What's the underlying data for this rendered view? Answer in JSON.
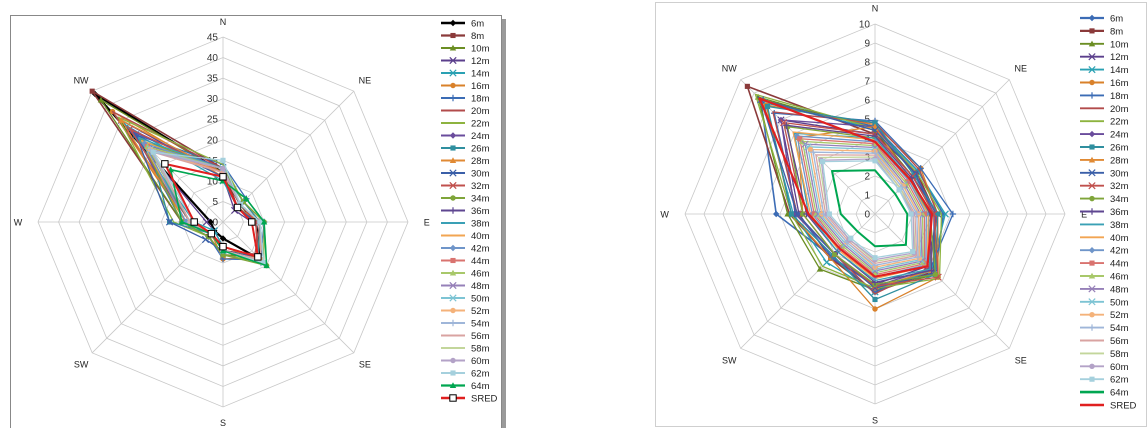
{
  "chart_data": [
    {
      "type": "radar",
      "categories": [
        "N",
        "NE",
        "E",
        "SE",
        "S",
        "SW",
        "W",
        "NW"
      ],
      "rmax": 45,
      "ticks": [
        0,
        5,
        10,
        15,
        20,
        25,
        30,
        35,
        40,
        45
      ],
      "series": [
        {
          "name": "6m",
          "color": "#000000",
          "marker": "diamond",
          "width": 2.2,
          "values": [
            12,
            6,
            8,
            13,
            4,
            3,
            3,
            44
          ]
        },
        {
          "name": "8m",
          "color": "#8b3a3a",
          "marker": "square",
          "width": 1.6,
          "values": [
            13,
            5,
            8,
            12,
            8,
            5,
            10,
            45
          ]
        },
        {
          "name": "10m",
          "color": "#6b8e23",
          "marker": "triangle",
          "width": 1.3,
          "values": [
            12,
            6,
            8,
            12,
            8,
            5,
            10,
            42
          ]
        },
        {
          "name": "12m",
          "color": "#5b3f8c",
          "marker": "x",
          "width": 1.3,
          "values": [
            11,
            4,
            7,
            12,
            6,
            3,
            4,
            35
          ]
        },
        {
          "name": "14m",
          "color": "#2aa1b3",
          "marker": "x",
          "width": 1.3,
          "values": [
            10,
            5,
            9,
            13,
            6,
            3,
            7,
            33
          ]
        },
        {
          "name": "16m",
          "color": "#d9812a",
          "marker": "circle",
          "width": 1.3,
          "values": [
            11,
            5,
            9,
            12,
            9,
            4,
            9,
            38
          ]
        },
        {
          "name": "18m",
          "color": "#3b6cb5",
          "marker": "plus",
          "width": 1.3,
          "values": [
            14,
            8,
            10,
            13,
            9,
            5,
            10,
            30
          ]
        },
        {
          "name": "20m",
          "color": "#b24b4b",
          "marker": "none",
          "width": 1.3,
          "values": [
            13,
            7,
            9,
            11,
            7,
            4,
            8,
            38
          ]
        },
        {
          "name": "22m",
          "color": "#8db33f",
          "marker": "none",
          "width": 1.3,
          "values": [
            14,
            7,
            10,
            14,
            8,
            5,
            12,
            36
          ]
        },
        {
          "name": "24m",
          "color": "#6a4c9c",
          "marker": "diamond",
          "width": 1.3,
          "values": [
            13,
            6,
            9,
            13,
            7,
            4,
            9,
            31
          ]
        },
        {
          "name": "26m",
          "color": "#2f8f9f",
          "marker": "square",
          "width": 1.3,
          "values": [
            12,
            7,
            9,
            12,
            7,
            4,
            13,
            25
          ]
        },
        {
          "name": "28m",
          "color": "#e08a34",
          "marker": "triangle",
          "width": 1.3,
          "values": [
            12,
            6,
            9,
            13,
            6,
            4,
            9,
            35
          ]
        },
        {
          "name": "30m",
          "color": "#3a5fa8",
          "marker": "x",
          "width": 1.3,
          "values": [
            11,
            5,
            8,
            12,
            7,
            6,
            13,
            30
          ]
        },
        {
          "name": "32m",
          "color": "#c0504d",
          "marker": "x",
          "width": 1.3,
          "values": [
            12,
            6,
            8,
            12,
            6,
            4,
            8,
            32
          ]
        },
        {
          "name": "34m",
          "color": "#7fa53a",
          "marker": "circle",
          "width": 1.3,
          "values": [
            13,
            7,
            10,
            15,
            8,
            5,
            10,
            28
          ]
        },
        {
          "name": "36m",
          "color": "#5e4690",
          "marker": "plus",
          "width": 1.3,
          "values": [
            12,
            6,
            9,
            13,
            7,
            4,
            9,
            27
          ]
        },
        {
          "name": "38m",
          "color": "#3aa0b5",
          "marker": "none",
          "width": 1.3,
          "values": [
            13,
            6,
            9,
            13,
            7,
            4,
            8,
            29
          ]
        },
        {
          "name": "40m",
          "color": "#f2a552",
          "marker": "none",
          "width": 1.3,
          "values": [
            12,
            6,
            9,
            13,
            7,
            4,
            9,
            28
          ]
        },
        {
          "name": "42m",
          "color": "#6f95c9",
          "marker": "diamond",
          "width": 1.3,
          "values": [
            13,
            6,
            9,
            13,
            7,
            4,
            9,
            27
          ]
        },
        {
          "name": "44m",
          "color": "#d9736f",
          "marker": "square",
          "width": 1.3,
          "values": [
            12,
            6,
            9,
            13,
            7,
            4,
            8,
            26
          ]
        },
        {
          "name": "46m",
          "color": "#a8c86a",
          "marker": "triangle",
          "width": 1.3,
          "values": [
            13,
            6,
            9,
            13,
            7,
            4,
            8,
            26
          ]
        },
        {
          "name": "48m",
          "color": "#9680b8",
          "marker": "x",
          "width": 1.3,
          "values": [
            12,
            6,
            9,
            14,
            7,
            4,
            8,
            25
          ]
        },
        {
          "name": "50m",
          "color": "#7dc4d4",
          "marker": "x",
          "width": 1.3,
          "values": [
            13,
            6,
            9,
            14,
            7,
            4,
            8,
            25
          ]
        },
        {
          "name": "52m",
          "color": "#f4b27a",
          "marker": "circle",
          "width": 1.3,
          "values": [
            12,
            6,
            9,
            13,
            7,
            4,
            8,
            25
          ]
        },
        {
          "name": "54m",
          "color": "#9fb6d9",
          "marker": "plus",
          "width": 1.3,
          "values": [
            13,
            6,
            9,
            14,
            7,
            4,
            8,
            25
          ]
        },
        {
          "name": "56m",
          "color": "#d9a3a1",
          "marker": "none",
          "width": 1.3,
          "values": [
            12,
            6,
            9,
            13,
            7,
            4,
            8,
            24
          ]
        },
        {
          "name": "58m",
          "color": "#c3d69b",
          "marker": "none",
          "width": 1.3,
          "values": [
            13,
            6,
            9,
            14,
            7,
            4,
            7,
            24
          ]
        },
        {
          "name": "60m",
          "color": "#b3a2c7",
          "marker": "circle",
          "width": 1.3,
          "values": [
            13,
            6,
            9,
            14,
            7,
            4,
            7,
            24
          ]
        },
        {
          "name": "62m",
          "color": "#a5d0dd",
          "marker": "square",
          "width": 1.3,
          "values": [
            15,
            6,
            9,
            14,
            7,
            4,
            7,
            24
          ]
        },
        {
          "name": "64m",
          "color": "#00a651",
          "marker": "triangle",
          "width": 1.6,
          "values": [
            10,
            8,
            10,
            15,
            7,
            4,
            10,
            18
          ]
        },
        {
          "name": "SRED",
          "color": "#e02020",
          "marker": "square-open",
          "width": 2,
          "values": [
            11,
            5,
            7,
            12,
            6,
            4,
            7,
            20
          ]
        }
      ]
    },
    {
      "type": "radar",
      "categories": [
        "N",
        "NE",
        "E",
        "SE",
        "S",
        "SW",
        "W",
        "NW"
      ],
      "rmax": 10,
      "ticks": [
        0,
        1,
        2,
        3,
        4,
        5,
        6,
        7,
        8,
        9,
        10
      ],
      "series": [
        {
          "name": "6m",
          "color": "#3c6cb5",
          "marker": "diamond",
          "width": 1.6,
          "values": [
            4.6,
            3.2,
            3.6,
            4.5,
            3.8,
            3.2,
            5.2,
            8.5
          ]
        },
        {
          "name": "8m",
          "color": "#8b3a3a",
          "marker": "square",
          "width": 1.6,
          "values": [
            4.2,
            3.1,
            3.2,
            4.3,
            4.1,
            3.3,
            4.5,
            9.5
          ]
        },
        {
          "name": "10m",
          "color": "#6b8e23",
          "marker": "triangle",
          "width": 1.3,
          "values": [
            4.4,
            2.8,
            3.1,
            4.5,
            4.0,
            4.1,
            4.6,
            8.7
          ]
        },
        {
          "name": "12m",
          "color": "#5b3f8c",
          "marker": "x",
          "width": 1.3,
          "values": [
            4.2,
            2.8,
            3.3,
            3.9,
            3.7,
            3.3,
            4.0,
            7.0
          ]
        },
        {
          "name": "14m",
          "color": "#2aa1b3",
          "marker": "x",
          "width": 1.3,
          "values": [
            4.5,
            3.2,
            3.7,
            4.2,
            4.1,
            3.6,
            4.3,
            8.3
          ]
        },
        {
          "name": "16m",
          "color": "#d9812a",
          "marker": "circle",
          "width": 1.3,
          "values": [
            4.7,
            3.4,
            3.3,
            4.7,
            5.0,
            3.3,
            4.4,
            8.1
          ]
        },
        {
          "name": "18m",
          "color": "#3b6cb5",
          "marker": "plus",
          "width": 1.3,
          "values": [
            4.9,
            3.4,
            4.1,
            4.1,
            4.1,
            3.2,
            4.1,
            7.5
          ]
        },
        {
          "name": "20m",
          "color": "#b24b4b",
          "marker": "none",
          "width": 1.3,
          "values": [
            4.8,
            3.3,
            3.3,
            4.0,
            4.2,
            3.0,
            4.1,
            7.6
          ]
        },
        {
          "name": "22m",
          "color": "#8db33f",
          "marker": "none",
          "width": 1.3,
          "values": [
            4.5,
            3.1,
            3.5,
            4.8,
            3.9,
            3.9,
            4.4,
            8.9
          ]
        },
        {
          "name": "24m",
          "color": "#6a4c9c",
          "marker": "diamond",
          "width": 1.3,
          "values": [
            4.6,
            3.0,
            3.2,
            4.1,
            3.8,
            3.0,
            4.2,
            7.0
          ]
        },
        {
          "name": "26m",
          "color": "#2f8f9f",
          "marker": "square",
          "width": 1.3,
          "values": [
            4.8,
            2.9,
            3.3,
            4.5,
            4.5,
            3.1,
            4.4,
            8.0
          ]
        },
        {
          "name": "28m",
          "color": "#e08a34",
          "marker": "triangle",
          "width": 1.3,
          "values": [
            4.6,
            2.6,
            2.9,
            4.2,
            3.9,
            3.0,
            3.8,
            5.7
          ]
        },
        {
          "name": "30m",
          "color": "#3a5fa8",
          "marker": "x",
          "width": 1.3,
          "values": [
            4.4,
            3.0,
            3.1,
            4.4,
            3.9,
            3.0,
            4.1,
            8.5
          ]
        },
        {
          "name": "32m",
          "color": "#c0504d",
          "marker": "x",
          "width": 1.3,
          "values": [
            4.2,
            2.8,
            3.1,
            4.7,
            3.8,
            3.0,
            3.8,
            6.8
          ]
        },
        {
          "name": "34m",
          "color": "#7fa53a",
          "marker": "circle",
          "width": 1.3,
          "values": [
            4.0,
            2.6,
            2.9,
            4.5,
            3.7,
            3.0,
            3.8,
            6.5
          ]
        },
        {
          "name": "36m",
          "color": "#5e4690",
          "marker": "plus",
          "width": 1.3,
          "values": [
            4.1,
            2.7,
            2.9,
            4.2,
            3.6,
            2.8,
            3.6,
            6.6
          ]
        },
        {
          "name": "38m",
          "color": "#3aa0b5",
          "marker": "none",
          "width": 1.3,
          "values": [
            4.0,
            2.6,
            2.8,
            4.1,
            3.5,
            2.8,
            3.5,
            6.0
          ]
        },
        {
          "name": "40m",
          "color": "#f2a552",
          "marker": "none",
          "width": 1.3,
          "values": [
            3.9,
            2.5,
            2.8,
            3.9,
            3.4,
            2.7,
            3.4,
            6.1
          ]
        },
        {
          "name": "42m",
          "color": "#6f95c9",
          "marker": "diamond",
          "width": 1.3,
          "values": [
            3.8,
            2.5,
            2.7,
            3.8,
            3.3,
            2.6,
            3.3,
            5.8
          ]
        },
        {
          "name": "44m",
          "color": "#d9736f",
          "marker": "square",
          "width": 1.3,
          "values": [
            3.7,
            2.4,
            2.6,
            3.7,
            3.2,
            2.5,
            3.2,
            5.6
          ]
        },
        {
          "name": "46m",
          "color": "#a8c86a",
          "marker": "triangle",
          "width": 1.3,
          "values": [
            3.6,
            2.3,
            2.5,
            3.6,
            3.1,
            2.4,
            3.1,
            5.4
          ]
        },
        {
          "name": "48m",
          "color": "#9680b8",
          "marker": "x",
          "width": 1.3,
          "values": [
            3.5,
            2.2,
            2.4,
            3.5,
            3.0,
            2.3,
            3.0,
            5.2
          ]
        },
        {
          "name": "50m",
          "color": "#7dc4d4",
          "marker": "x",
          "width": 1.3,
          "values": [
            3.4,
            2.1,
            2.3,
            3.4,
            2.9,
            2.2,
            2.9,
            5.0
          ]
        },
        {
          "name": "52m",
          "color": "#f4b27a",
          "marker": "circle",
          "width": 1.3,
          "values": [
            3.3,
            2.1,
            2.3,
            3.3,
            2.8,
            2.1,
            2.8,
            4.8
          ]
        },
        {
          "name": "54m",
          "color": "#9fb6d9",
          "marker": "plus",
          "width": 1.3,
          "values": [
            3.2,
            2.0,
            2.2,
            3.2,
            2.7,
            2.1,
            2.7,
            4.6
          ]
        },
        {
          "name": "56m",
          "color": "#d9a3a1",
          "marker": "none",
          "width": 1.3,
          "values": [
            3.1,
            1.9,
            2.1,
            3.1,
            2.6,
            2.0,
            2.6,
            4.4
          ]
        },
        {
          "name": "58m",
          "color": "#c3d69b",
          "marker": "none",
          "width": 1.3,
          "values": [
            3.0,
            1.9,
            2.0,
            3.0,
            2.5,
            1.9,
            2.5,
            4.2
          ]
        },
        {
          "name": "60m",
          "color": "#b3a2c7",
          "marker": "circle",
          "width": 1.3,
          "values": [
            2.9,
            1.8,
            2.0,
            2.9,
            2.4,
            1.9,
            2.5,
            4.0
          ]
        },
        {
          "name": "62m",
          "color": "#a5d0dd",
          "marker": "square",
          "width": 1.3,
          "values": [
            2.8,
            1.8,
            1.9,
            2.8,
            2.3,
            1.8,
            2.4,
            3.9
          ]
        },
        {
          "name": "64m",
          "color": "#00a651",
          "marker": "none",
          "width": 2,
          "values": [
            2.3,
            1.5,
            1.7,
            2.3,
            1.7,
            1.3,
            1.8,
            3.2
          ]
        },
        {
          "name": "SRED",
          "color": "#e02020",
          "marker": "none",
          "width": 2.2,
          "values": [
            3.8,
            2.6,
            3.0,
            3.9,
            3.3,
            2.6,
            3.5,
            8.6
          ]
        }
      ]
    }
  ]
}
